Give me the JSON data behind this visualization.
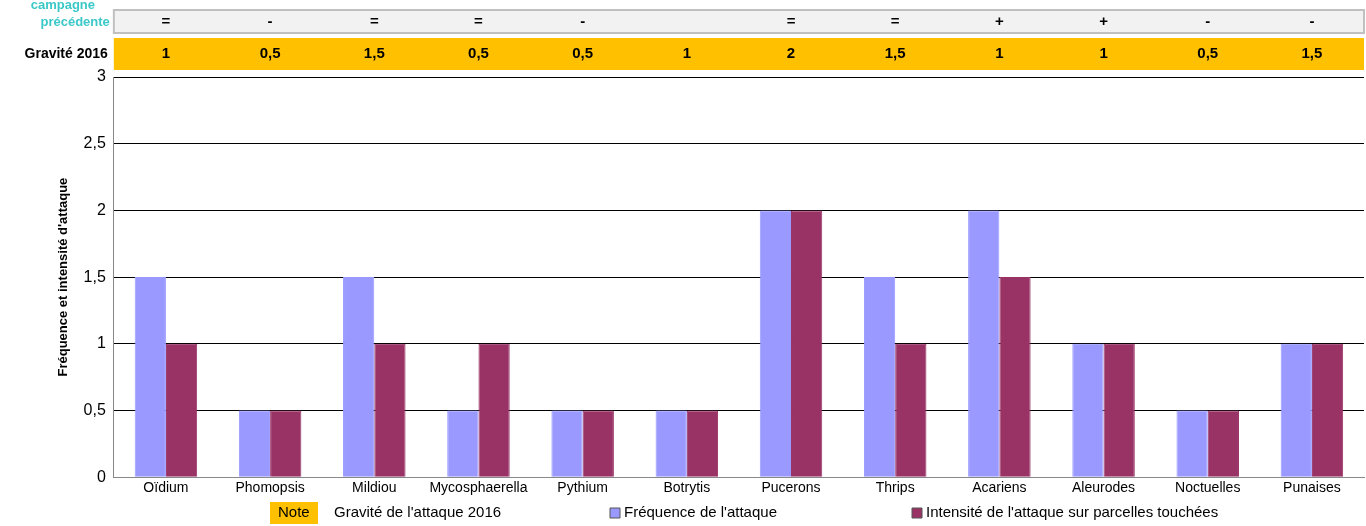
{
  "chart_data": {
    "type": "bar",
    "ylabel": "Fréquence et intensité d'attaque",
    "categories": [
      "Oïdium",
      "Phomopsis",
      "Mildiou",
      "Mycosphaerella",
      "Pythium",
      "Botrytis",
      "Pucerons",
      "Thrips",
      "Acariens",
      "Aleurodes",
      "Noctuelles",
      "Punaises"
    ],
    "series": [
      {
        "name": "Fréquence de l'attaque",
        "color": "#9999ff",
        "values": [
          1.5,
          0.5,
          1.5,
          0.5,
          0.5,
          0.5,
          2,
          1.5,
          2,
          1,
          0.5,
          1
        ]
      },
      {
        "name": "Intensité de l'attaque sur parcelles touchées",
        "color": "#993366",
        "values": [
          1,
          0.5,
          1,
          1,
          0.5,
          0.5,
          2,
          1,
          1.5,
          1,
          0.5,
          1
        ]
      }
    ],
    "ylim": [
      0,
      3
    ],
    "yticks": [
      0,
      {
        "value": 0.5,
        "label": "0,5"
      },
      1,
      {
        "value": 1.5,
        "label": "1,5"
      },
      2,
      {
        "value": 2.5,
        "label": "2,5"
      },
      3
    ],
    "grid": "y",
    "legend": "bottom",
    "annotations": [
      "campagne précédente",
      "Gravité 2016",
      "Note",
      "Gravité de l'attaque 2016",
      "=",
      "-",
      "=",
      "=",
      "-",
      null,
      "=",
      "=",
      "+",
      "+",
      "-",
      "-",
      "1",
      "0,5",
      "1,5",
      "0,5",
      "0,5",
      "1",
      "2",
      "1,5",
      "1",
      "1",
      "0,5",
      "1,5"
    ]
  }
}
